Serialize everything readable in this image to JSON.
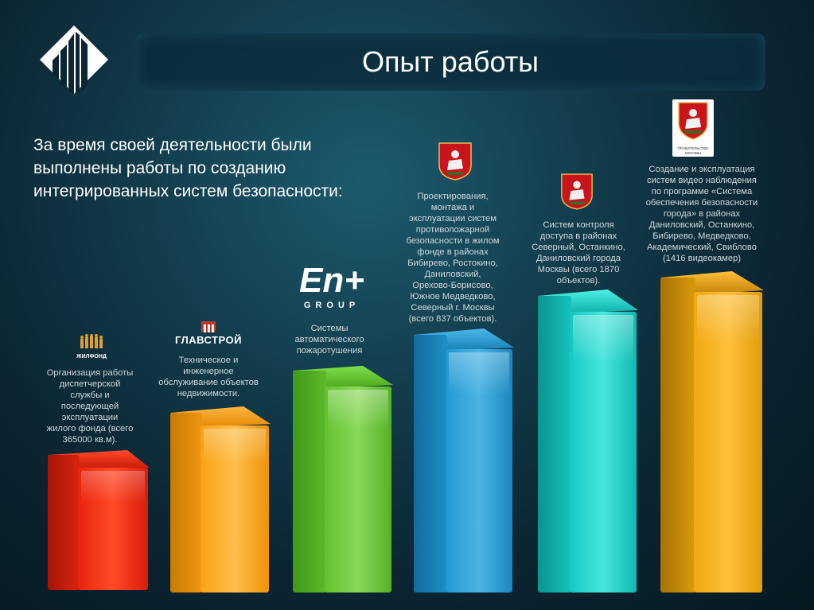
{
  "header": {
    "title": "Опыт работы"
  },
  "intro": {
    "lines": [
      "За время своей деятельности были",
      "выполнены работы по созданию",
      "интегрированных систем безопасности:"
    ]
  },
  "logos": {
    "zhilfond": "ЖИЛФОНД",
    "glavstroy": "ГЛАВСТРОЙ",
    "en_plus_main": "En+",
    "en_plus_sub": "GROUP",
    "gov_caption_1": "ПРАВИТЕЛЬСТВО",
    "gov_caption_2": "МОСКВЫ"
  },
  "columns": [
    {
      "color": "#e8230e",
      "lines": [
        "Организация работы",
        "диспетчерской",
        "службы и",
        "последующей",
        "эксплуатации",
        "жилого фонда (всего",
        "365000 кв.м)."
      ]
    },
    {
      "color": "#f39a0a",
      "lines": [
        "Техническое и",
        "инженерное",
        "обслуживание объектов",
        "недвижимости."
      ]
    },
    {
      "color": "#5cb82a",
      "lines": [
        "Системы",
        "автоматического",
        "пожаротушения"
      ]
    },
    {
      "color": "#1e8ec4",
      "lines": [
        "Проектирования,",
        "монтажа и",
        "эксплуатации систем",
        "противопожарной",
        "безопасности в жилом",
        "фонде в районах",
        "Бибирево, Ростокино,",
        "Даниловский,",
        "Орехово-Борисово,",
        "Южное Медведково,",
        "Северный г. Москвы",
        "(всего 837 объектов)."
      ]
    },
    {
      "color": "#16c2bd",
      "lines": [
        "Систем контроля",
        "доступа в районах",
        "Северный, Останкино,",
        "Даниловский  города",
        "Москвы (всего 1870",
        "объектов)."
      ]
    },
    {
      "color": "#d89a0a",
      "lines": [
        "Создание и эксплуатация",
        "систем видео наблюдения",
        "по программе «Система",
        "обеспечения безопасности",
        "города»  в районах",
        "Даниловский, Останкино,",
        "Бибирево, Медведково,",
        "Академический, Свиблово",
        "(1416 видеокамер)"
      ]
    }
  ]
}
